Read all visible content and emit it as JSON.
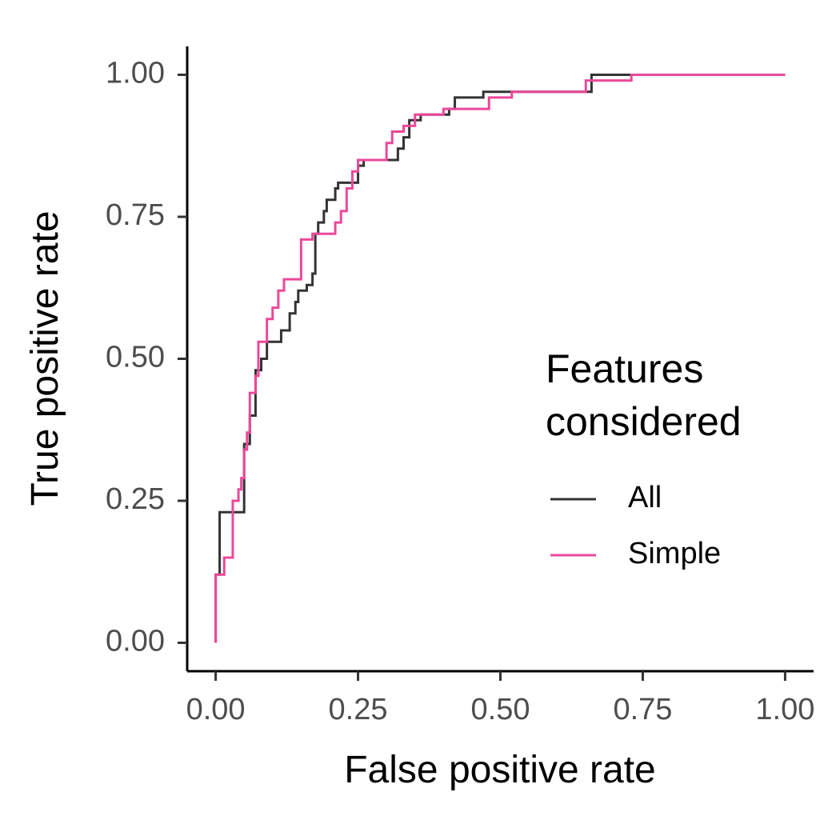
{
  "chart_data": {
    "type": "line",
    "x_label": "False positive rate",
    "y_label": "True positive rate",
    "legend_title": "Features\nconsidered",
    "xlim": [
      -0.05,
      1.05
    ],
    "ylim": [
      -0.05,
      1.05
    ],
    "xticks": [
      {
        "value": 0,
        "label": "0.00"
      },
      {
        "value": 0.25,
        "label": "0.25"
      },
      {
        "value": 0.5,
        "label": "0.50"
      },
      {
        "value": 0.75,
        "label": "0.75"
      },
      {
        "value": 1,
        "label": "1.00"
      }
    ],
    "yticks": [
      {
        "value": 0,
        "label": "0.00"
      },
      {
        "value": 0.25,
        "label": "0.25"
      },
      {
        "value": 0.5,
        "label": "0.50"
      },
      {
        "value": 0.75,
        "label": "0.75"
      },
      {
        "value": 1,
        "label": "1.00"
      }
    ],
    "grid": false,
    "series": [
      {
        "name": "All",
        "color": "#333333",
        "x": [
          0,
          0,
          0.007,
          0.007,
          0.05,
          0.05,
          0.06,
          0.06,
          0.07,
          0.07,
          0.08,
          0.08,
          0.09,
          0.09,
          0.115,
          0.115,
          0.13,
          0.13,
          0.14,
          0.14,
          0.145,
          0.145,
          0.16,
          0.16,
          0.17,
          0.17,
          0.175,
          0.175,
          0.18,
          0.18,
          0.19,
          0.19,
          0.195,
          0.195,
          0.21,
          0.21,
          0.215,
          0.215,
          0.25,
          0.25,
          0.26,
          0.26,
          0.32,
          0.32,
          0.33,
          0.33,
          0.34,
          0.34,
          0.36,
          0.36,
          0.41,
          0.41,
          0.42,
          0.42,
          0.47,
          0.47,
          0.66,
          0.66,
          1
        ],
        "values": [
          0,
          0.12,
          0.12,
          0.23,
          0.23,
          0.35,
          0.35,
          0.4,
          0.4,
          0.48,
          0.48,
          0.5,
          0.5,
          0.53,
          0.53,
          0.55,
          0.55,
          0.58,
          0.58,
          0.6,
          0.6,
          0.62,
          0.62,
          0.63,
          0.63,
          0.65,
          0.65,
          0.72,
          0.72,
          0.74,
          0.74,
          0.76,
          0.76,
          0.78,
          0.78,
          0.8,
          0.8,
          0.81,
          0.81,
          0.84,
          0.84,
          0.85,
          0.85,
          0.87,
          0.87,
          0.89,
          0.89,
          0.92,
          0.92,
          0.93,
          0.93,
          0.94,
          0.94,
          0.96,
          0.96,
          0.97,
          0.97,
          1,
          1
        ]
      },
      {
        "name": "Simple",
        "color": "#ec4899",
        "x": [
          0,
          0,
          0.015,
          0.015,
          0.03,
          0.03,
          0.04,
          0.04,
          0.045,
          0.045,
          0.05,
          0.05,
          0.055,
          0.055,
          0.06,
          0.06,
          0.07,
          0.07,
          0.075,
          0.075,
          0.09,
          0.09,
          0.1,
          0.1,
          0.11,
          0.11,
          0.12,
          0.12,
          0.15,
          0.15,
          0.17,
          0.17,
          0.21,
          0.21,
          0.22,
          0.22,
          0.23,
          0.23,
          0.24,
          0.24,
          0.25,
          0.25,
          0.3,
          0.3,
          0.31,
          0.31,
          0.33,
          0.33,
          0.35,
          0.35,
          0.4,
          0.4,
          0.48,
          0.48,
          0.52,
          0.52,
          0.65,
          0.65,
          0.73,
          0.73,
          1
        ],
        "values": [
          0,
          0.12,
          0.12,
          0.15,
          0.15,
          0.25,
          0.25,
          0.27,
          0.27,
          0.29,
          0.29,
          0.34,
          0.34,
          0.37,
          0.37,
          0.44,
          0.44,
          0.47,
          0.47,
          0.53,
          0.53,
          0.57,
          0.57,
          0.59,
          0.59,
          0.62,
          0.62,
          0.64,
          0.64,
          0.71,
          0.71,
          0.72,
          0.72,
          0.74,
          0.74,
          0.76,
          0.76,
          0.8,
          0.8,
          0.83,
          0.83,
          0.85,
          0.85,
          0.88,
          0.88,
          0.9,
          0.9,
          0.91,
          0.91,
          0.93,
          0.93,
          0.94,
          0.94,
          0.96,
          0.96,
          0.97,
          0.97,
          0.99,
          0.99,
          1,
          1
        ]
      }
    ]
  }
}
